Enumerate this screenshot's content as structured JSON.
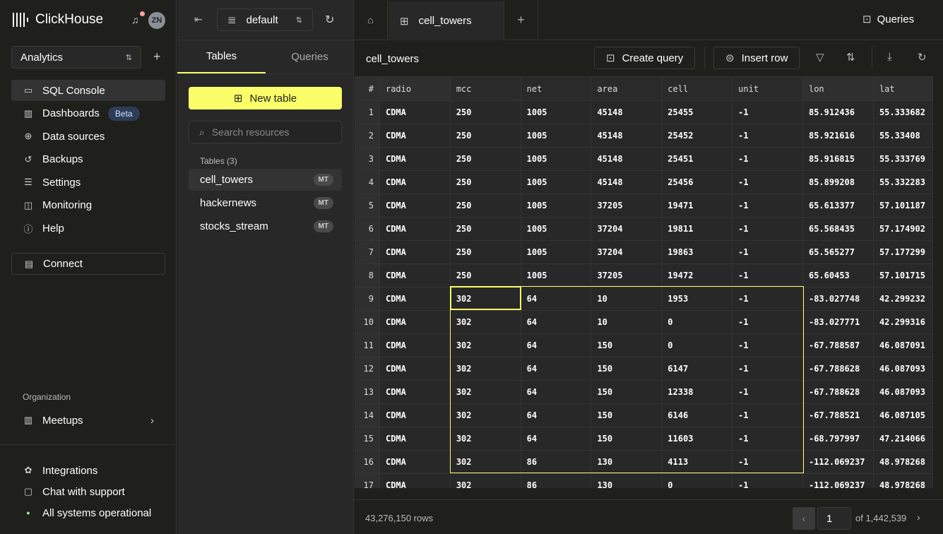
{
  "app": {
    "name": "ClickHouse",
    "avatar_initials": "ZN",
    "service": "Analytics"
  },
  "sidebar": {
    "items": [
      {
        "label": "SQL Console",
        "icon": "console-icon",
        "glyph": "▭",
        "active": true
      },
      {
        "label": "Dashboards",
        "icon": "dashboard-icon",
        "glyph": "▥",
        "badge": "Beta"
      },
      {
        "label": "Data sources",
        "icon": "data-sources-icon",
        "glyph": "⊕"
      },
      {
        "label": "Backups",
        "icon": "backup-icon",
        "glyph": "↺"
      },
      {
        "label": "Settings",
        "icon": "settings-icon",
        "glyph": "☰"
      },
      {
        "label": "Monitoring",
        "icon": "monitoring-icon",
        "glyph": "◫"
      },
      {
        "label": "Help",
        "icon": "help-icon",
        "glyph": "ⓘ"
      }
    ],
    "connect": "Connect",
    "org_label": "Organization",
    "org": "Meetups",
    "bottom": [
      {
        "label": "Integrations",
        "icon": "integrations-icon",
        "glyph": "✿"
      },
      {
        "label": "Chat with support",
        "icon": "chat-icon",
        "glyph": "▢"
      },
      {
        "label": "All systems operational",
        "icon": "status-dot-icon",
        "glyph": "●",
        "color": "#9ef0a8"
      }
    ]
  },
  "panel": {
    "database": "default",
    "tabs": [
      "Tables",
      "Queries"
    ],
    "new_table": "New table",
    "search_placeholder": "Search resources",
    "tables_label": "Tables (3)",
    "tables": [
      {
        "name": "cell_towers",
        "engine": "MT",
        "active": true
      },
      {
        "name": "hackernews",
        "engine": "MT"
      },
      {
        "name": "stocks_stream",
        "engine": "MT"
      }
    ]
  },
  "main": {
    "tab": "cell_towers",
    "queries": "Queries",
    "title": "cell_towers",
    "create_query": "Create query",
    "insert_row": "Insert row",
    "columns": [
      "#",
      "radio",
      "mcc",
      "net",
      "area",
      "cell",
      "unit",
      "lon",
      "lat"
    ],
    "rows": [
      [
        "1",
        "CDMA",
        "250",
        "1005",
        "45148",
        "25455",
        "-1",
        "85.912436",
        "55.333682"
      ],
      [
        "2",
        "CDMA",
        "250",
        "1005",
        "45148",
        "25452",
        "-1",
        "85.921616",
        "55.33408"
      ],
      [
        "3",
        "CDMA",
        "250",
        "1005",
        "45148",
        "25451",
        "-1",
        "85.916815",
        "55.333769"
      ],
      [
        "4",
        "CDMA",
        "250",
        "1005",
        "45148",
        "25456",
        "-1",
        "85.899208",
        "55.332283"
      ],
      [
        "5",
        "CDMA",
        "250",
        "1005",
        "37205",
        "19471",
        "-1",
        "65.613377",
        "57.101187"
      ],
      [
        "6",
        "CDMA",
        "250",
        "1005",
        "37204",
        "19811",
        "-1",
        "65.568435",
        "57.174902"
      ],
      [
        "7",
        "CDMA",
        "250",
        "1005",
        "37204",
        "19863",
        "-1",
        "65.565277",
        "57.177299"
      ],
      [
        "8",
        "CDMA",
        "250",
        "1005",
        "37205",
        "19472",
        "-1",
        "65.60453",
        "57.101715"
      ],
      [
        "9",
        "CDMA",
        "302",
        "64",
        "10",
        "1953",
        "-1",
        "-83.027748",
        "42.299232"
      ],
      [
        "10",
        "CDMA",
        "302",
        "64",
        "10",
        "0",
        "-1",
        "-83.027771",
        "42.299316"
      ],
      [
        "11",
        "CDMA",
        "302",
        "64",
        "150",
        "0",
        "-1",
        "-67.788587",
        "46.087091"
      ],
      [
        "12",
        "CDMA",
        "302",
        "64",
        "150",
        "6147",
        "-1",
        "-67.788628",
        "46.087093"
      ],
      [
        "13",
        "CDMA",
        "302",
        "64",
        "150",
        "12338",
        "-1",
        "-67.788628",
        "46.087093"
      ],
      [
        "14",
        "CDMA",
        "302",
        "64",
        "150",
        "6146",
        "-1",
        "-67.788521",
        "46.087105"
      ],
      [
        "15",
        "CDMA",
        "302",
        "64",
        "150",
        "11603",
        "-1",
        "-68.797997",
        "47.214066"
      ],
      [
        "16",
        "CDMA",
        "302",
        "86",
        "130",
        "4113",
        "-1",
        "-112.069237",
        "48.978268"
      ],
      [
        "17",
        "CDMA",
        "302",
        "86",
        "130",
        "0",
        "-1",
        "-112.069237",
        "48.978268"
      ]
    ],
    "row_count": "43,276,150 rows",
    "page": "1",
    "page_total": "of 1,442,539",
    "accent": "#faff69"
  }
}
